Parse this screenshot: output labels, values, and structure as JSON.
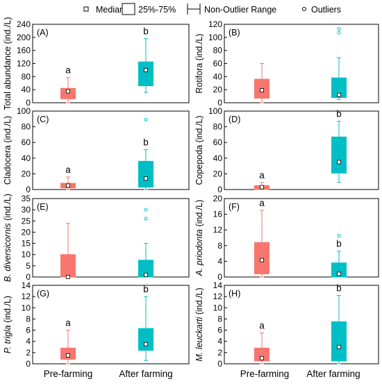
{
  "legend": {
    "median": "Median",
    "box": "25%-75%",
    "range": "Non-Outlier Range",
    "outliers": "Outliers"
  },
  "colors": {
    "pre": "#f8766d",
    "after": "#00bfc4"
  },
  "chart_data": [
    {
      "type": "box",
      "tag": "(A)",
      "ylabel": "Total abundance (ind./L)",
      "ylabel_italic": "",
      "ylim": [
        0,
        240
      ],
      "yticks": [
        0,
        40,
        80,
        120,
        160,
        200,
        240
      ],
      "categories": [
        "Pre-farming",
        "After farming"
      ],
      "boxes": [
        {
          "q1": 12,
          "q3": 44,
          "median": 35,
          "whisker_low": 0,
          "whisker_high": 77,
          "outliers": [],
          "letter": "a"
        },
        {
          "q1": 52,
          "q3": 125,
          "median": 100,
          "whisker_low": 32,
          "whisker_high": 196,
          "outliers": [],
          "letter": "b"
        }
      ]
    },
    {
      "type": "box",
      "tag": "(B)",
      "ylabel": "Rotifora (ind./L)",
      "ylabel_italic": "",
      "ylim": [
        0,
        120
      ],
      "yticks": [
        0,
        20,
        40,
        60,
        80,
        100,
        120
      ],
      "categories": [
        "Pre-farming",
        "After farming"
      ],
      "boxes": [
        {
          "q1": 7,
          "q3": 36,
          "median": 19,
          "whisker_low": 0,
          "whisker_high": 60,
          "outliers": [],
          "letter": ""
        },
        {
          "q1": 8,
          "q3": 38,
          "median": 12,
          "whisker_low": 5,
          "whisker_high": 69,
          "outliers": [
            107,
            113
          ],
          "letter": ""
        }
      ]
    },
    {
      "type": "box",
      "tag": "(C)",
      "ylabel": "Cladocera (ind./L)",
      "ylabel_italic": "",
      "ylim": [
        0,
        100
      ],
      "yticks": [
        0,
        20,
        40,
        60,
        80,
        100
      ],
      "categories": [
        "Pre-farming",
        "After farming"
      ],
      "boxes": [
        {
          "q1": 2,
          "q3": 8,
          "median": 5,
          "whisker_low": 0,
          "whisker_high": 16,
          "outliers": [],
          "letter": "a"
        },
        {
          "q1": 3,
          "q3": 36,
          "median": 14,
          "whisker_low": 0,
          "whisker_high": 51,
          "outliers": [
            89
          ],
          "letter": "b"
        }
      ]
    },
    {
      "type": "box",
      "tag": "(D)",
      "ylabel": "Copepoda (ind./L)",
      "ylabel_italic": "",
      "ylim": [
        0,
        100
      ],
      "yticks": [
        0,
        20,
        40,
        60,
        80,
        100
      ],
      "categories": [
        "Pre-farming",
        "After farming"
      ],
      "boxes": [
        {
          "q1": 0,
          "q3": 5,
          "median": 3,
          "whisker_low": 0,
          "whisker_high": 9,
          "outliers": [],
          "letter": "a"
        },
        {
          "q1": 21,
          "q3": 67,
          "median": 35,
          "whisker_low": 9,
          "whisker_high": 87,
          "outliers": [],
          "letter": "b"
        }
      ]
    },
    {
      "type": "box",
      "tag": "(E)",
      "ylabel": " (ind./L)",
      "ylabel_italic": "B. diversicornis",
      "ylim": [
        0,
        35
      ],
      "yticks": [
        0,
        5,
        10,
        15,
        20,
        25,
        30,
        35
      ],
      "categories": [
        "Pre-farming",
        "After farming"
      ],
      "boxes": [
        {
          "q1": 0,
          "q3": 10,
          "median": 0,
          "whisker_low": 0,
          "whisker_high": 24,
          "outliers": [],
          "letter": ""
        },
        {
          "q1": 0,
          "q3": 7.5,
          "median": 1,
          "whisker_low": 0,
          "whisker_high": 15,
          "outliers": [
            26,
            30
          ],
          "letter": ""
        }
      ]
    },
    {
      "type": "box",
      "tag": "(F)",
      "ylabel": " (ind./L)",
      "ylabel_italic": "A. priodonta",
      "ylim": [
        0,
        20
      ],
      "yticks": [
        0,
        4,
        8,
        12,
        16,
        20
      ],
      "categories": [
        "Pre-farming",
        "After farming"
      ],
      "boxes": [
        {
          "q1": 0.8,
          "q3": 8.8,
          "median": 4.3,
          "whisker_low": 0,
          "whisker_high": 17,
          "outliers": [],
          "letter": "a"
        },
        {
          "q1": 0,
          "q3": 3.6,
          "median": 0.8,
          "whisker_low": 0,
          "whisker_high": 6.6,
          "outliers": [
            10.5
          ],
          "letter": "b"
        }
      ]
    },
    {
      "type": "box",
      "tag": "(G)",
      "ylabel": " (ind./L)",
      "ylabel_italic": "P. trigla",
      "ylim": [
        0,
        14
      ],
      "yticks": [
        0,
        2,
        4,
        6,
        8,
        10,
        12,
        14
      ],
      "categories": [
        "Pre-farming",
        "After farming"
      ],
      "boxes": [
        {
          "q1": 0.8,
          "q3": 2.8,
          "median": 1.5,
          "whisker_low": 0,
          "whisker_high": 6,
          "outliers": [],
          "letter": "a"
        },
        {
          "q1": 2.4,
          "q3": 6.3,
          "median": 3.5,
          "whisker_low": 0.6,
          "whisker_high": 12,
          "outliers": [],
          "letter": "b"
        }
      ]
    },
    {
      "type": "box",
      "tag": "(H)",
      "ylabel": " (ind./L)",
      "ylabel_italic": "M. leuckarti",
      "ylim": [
        0,
        14
      ],
      "yticks": [
        0,
        2,
        4,
        6,
        8,
        10,
        12,
        14
      ],
      "categories": [
        "Pre-farming",
        "After farming"
      ],
      "boxes": [
        {
          "q1": 0.5,
          "q3": 2.8,
          "median": 1,
          "whisker_low": 0,
          "whisker_high": 5.5,
          "outliers": [],
          "letter": "a"
        },
        {
          "q1": 0.5,
          "q3": 7.5,
          "median": 3,
          "whisker_low": 0,
          "whisker_high": 12.2,
          "outliers": [],
          "letter": "b"
        }
      ]
    }
  ]
}
